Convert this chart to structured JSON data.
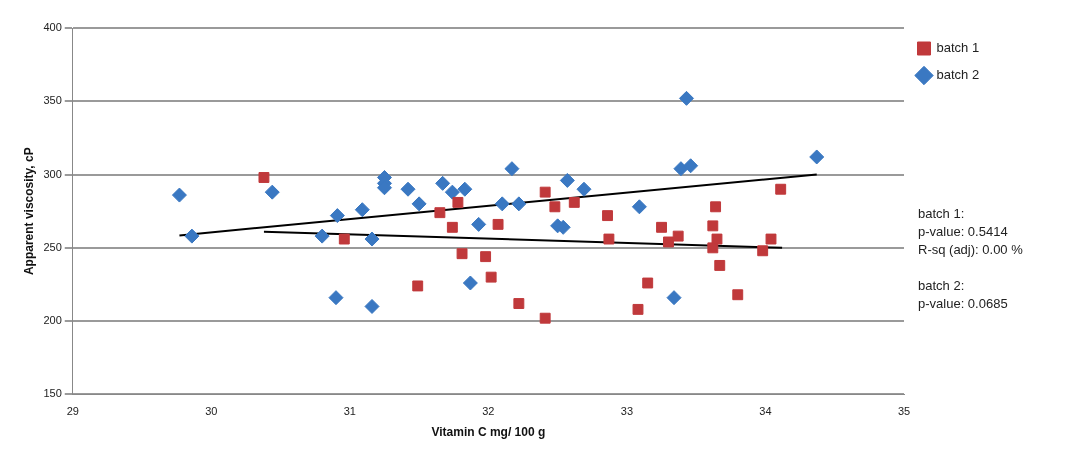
{
  "chart_data": {
    "type": "scatter",
    "xlabel": "Vitamin C mg/ 100 g",
    "ylabel": "Apparent viscosity, cP",
    "xlim": [
      29,
      35
    ],
    "xticks": [
      29,
      30,
      31,
      32,
      33,
      34,
      35
    ],
    "ylim": [
      150,
      400
    ],
    "yticks": [
      150,
      200,
      250,
      300,
      350,
      400
    ],
    "grid": "y",
    "legend": "right",
    "annotations": [
      "batch 1:\np-value: 0.5414\nR-sq (adj): 0.00 %",
      "batch 2:\np-value: 0.0685"
    ],
    "series": [
      {
        "name": "batch 1",
        "color": "#c0393b",
        "marker": "square",
        "x": [
          30.38,
          30.96,
          31.49,
          31.65,
          31.74,
          31.78,
          31.81,
          31.98,
          32.02,
          32.07,
          32.22,
          32.41,
          32.41,
          32.48,
          32.62,
          32.86,
          32.87,
          33.08,
          33.15,
          33.25,
          33.3,
          33.37,
          33.62,
          33.64,
          33.62,
          33.65,
          33.67,
          33.8,
          33.98,
          34.04,
          34.11
        ],
        "values": [
          298,
          256,
          224,
          274,
          264,
          281,
          246,
          244,
          230,
          266,
          212,
          288,
          202,
          278,
          281,
          272,
          256,
          208,
          226,
          264,
          254,
          258,
          265,
          278,
          250,
          256,
          238,
          218,
          248,
          256,
          290
        ]
      },
      {
        "name": "batch 2",
        "color": "#3a78c2",
        "marker": "diamond",
        "x": [
          29.77,
          29.86,
          30.44,
          30.8,
          30.9,
          30.91,
          31.09,
          31.16,
          31.16,
          31.25,
          31.25,
          31.25,
          31.42,
          31.5,
          31.67,
          31.74,
          31.83,
          31.87,
          31.93,
          32.1,
          32.17,
          32.22,
          32.5,
          32.54,
          32.57,
          32.69,
          33.09,
          33.34,
          33.39,
          33.43,
          33.46,
          34.37
        ],
        "values": [
          286,
          258,
          288,
          258,
          216,
          272,
          276,
          256,
          210,
          298,
          294,
          291,
          290,
          280,
          294,
          288,
          290,
          226,
          266,
          280,
          304,
          280,
          265,
          264,
          296,
          290,
          278,
          216,
          304,
          352,
          306,
          312
        ]
      },
      {
        "type": "line",
        "color": "#000000",
        "marker": "none",
        "x": [
          30.38,
          34.12
        ],
        "values": [
          261,
          250
        ]
      },
      {
        "type": "line",
        "color": "#000000",
        "marker": "none",
        "x": [
          29.77,
          34.37
        ],
        "values": [
          258.5,
          300
        ]
      }
    ]
  }
}
